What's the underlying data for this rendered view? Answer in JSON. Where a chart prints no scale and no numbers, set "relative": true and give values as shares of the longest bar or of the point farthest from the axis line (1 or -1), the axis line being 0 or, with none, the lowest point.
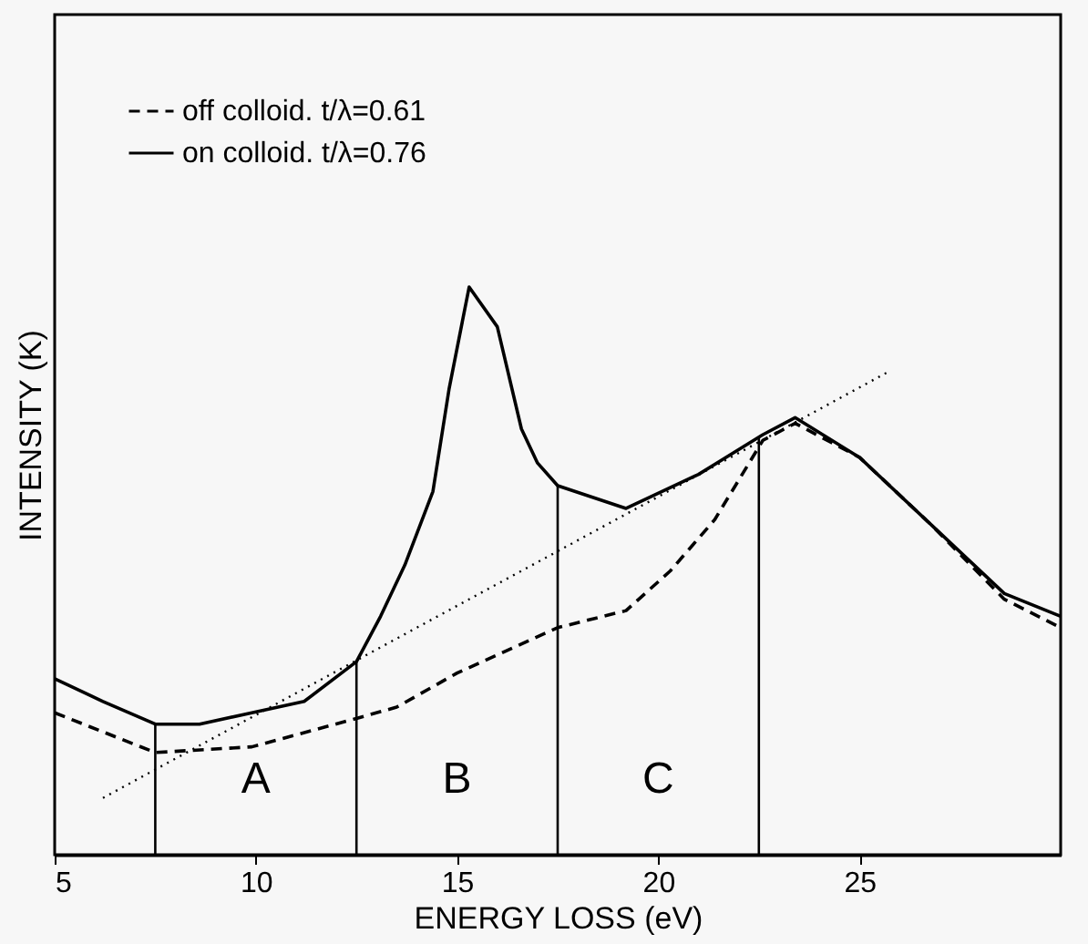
{
  "chart_data": {
    "type": "line",
    "xlabel": "ENERGY LOSS (eV)",
    "ylabel": "INTENSITY (K)",
    "relative": true,
    "xlim": [
      5,
      30
    ],
    "xticks": [
      5,
      10,
      15,
      20,
      25
    ],
    "legend": "top left",
    "grid": false,
    "series": [
      {
        "name": "off colloid. t/λ=0.61",
        "color": "#000000",
        "line_style": "dashed",
        "x": [
          5,
          7.5,
          9.9,
          12.5,
          13.5,
          15,
          17.5,
          19.2,
          20.3,
          21.4,
          22.6,
          23.4,
          25,
          26.8,
          28.6,
          30
        ],
        "values": [
          0.25,
          0.18,
          0.19,
          0.24,
          0.26,
          0.32,
          0.4,
          0.43,
          0.5,
          0.59,
          0.73,
          0.76,
          0.7,
          0.58,
          0.45,
          0.4
        ]
      },
      {
        "name": "on colloid. t/λ=0.76",
        "color": "#000000",
        "line_style": "solid",
        "x": [
          5,
          6.2,
          7.5,
          8.6,
          9.9,
          11.2,
          12.5,
          13.1,
          13.7,
          14.4,
          14.8,
          15.3,
          16,
          16.6,
          17,
          17.5,
          19.2,
          21,
          22.6,
          23.4,
          25,
          26.8,
          28.6,
          30
        ],
        "values": [
          0.31,
          0.27,
          0.23,
          0.23,
          0.25,
          0.27,
          0.34,
          0.42,
          0.51,
          0.64,
          0.82,
          1.0,
          0.93,
          0.75,
          0.69,
          0.65,
          0.61,
          0.67,
          0.74,
          0.77,
          0.7,
          0.58,
          0.46,
          0.42
        ]
      },
      {
        "type": "line",
        "color": "#000000",
        "line_style": "dotted",
        "x": [
          6.2,
          25.7
        ],
        "values": [
          0.1,
          0.85
        ]
      }
    ],
    "ref_lines": [
      {
        "axis": "x",
        "value": 7.5
      },
      {
        "axis": "x",
        "value": 12.5
      },
      {
        "axis": "x",
        "value": 17.5
      },
      {
        "axis": "x",
        "value": 22.5
      }
    ],
    "annotations": [
      "A",
      "B",
      "C"
    ]
  }
}
